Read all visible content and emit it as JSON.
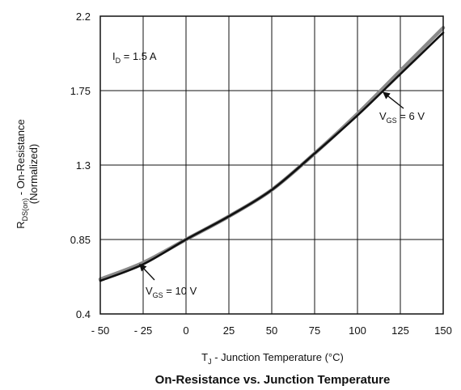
{
  "chart_data": {
    "type": "line",
    "title": "On-Resistance vs. Junction Temperature",
    "xlabel": {
      "main": "T",
      "sub": "J",
      "rest": " - Junction Temperature (°C)"
    },
    "ylabel": {
      "line1_main": "R",
      "line1_sub": "DS(on)",
      "line1_rest": " - On-Resistance",
      "line2": "(Normalized)"
    },
    "xlim": [
      -50,
      150
    ],
    "ylim": [
      0.4,
      2.2
    ],
    "x_ticks": [
      -50,
      -25,
      0,
      25,
      50,
      75,
      100,
      125,
      150
    ],
    "x_tick_labels": [
      "- 50",
      "- 25",
      "0",
      "25",
      "50",
      "75",
      "100",
      "125",
      "150"
    ],
    "y_ticks": [
      0.4,
      0.85,
      1.3,
      1.75,
      2.2
    ],
    "y_tick_labels": [
      "0.4",
      "0.85",
      "1.3",
      "1.75",
      "2.2"
    ],
    "grid": true,
    "series": [
      {
        "name": "VGS = 10 V",
        "color": "#8a8a8a",
        "x": [
          -50,
          -25,
          0,
          25,
          50,
          75,
          100,
          125,
          150
        ],
        "y": [
          0.61,
          0.71,
          0.85,
          0.99,
          1.15,
          1.37,
          1.61,
          1.87,
          2.13
        ]
      },
      {
        "name": "VGS = 6 V",
        "color": "#111111",
        "x": [
          -50,
          -25,
          0,
          25,
          50,
          75,
          100,
          125,
          150
        ],
        "y": [
          0.6,
          0.7,
          0.85,
          0.99,
          1.15,
          1.37,
          1.6,
          1.85,
          2.1
        ]
      }
    ],
    "annotations": [
      {
        "id": "id",
        "main": "I",
        "sub": "D",
        "rest": " = 1.5 A"
      },
      {
        "id": "vgs6",
        "main": "V",
        "sub": "GS",
        "rest": " = 6 V",
        "arrow_to": [
          115,
          1.74
        ]
      },
      {
        "id": "vgs10",
        "main": "V",
        "sub": "GS",
        "rest": " = 10 V",
        "arrow_to": [
          -27,
          0.7
        ]
      }
    ]
  }
}
